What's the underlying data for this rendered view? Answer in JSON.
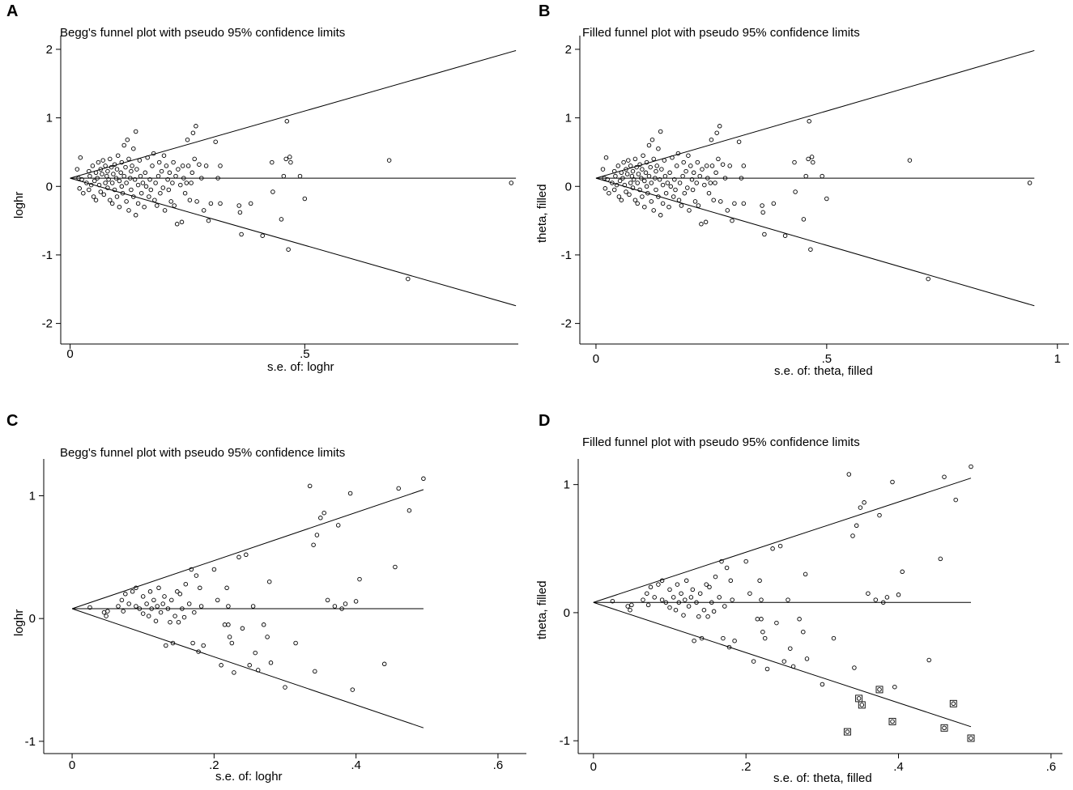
{
  "chart_data": [
    {
      "type": "scatter",
      "panel": "A",
      "title": "Begg's funnel plot with pseudo 95% confidence limits",
      "xlabel": "s.e. of: loghr",
      "ylabel": "loghr",
      "xlim": [
        -0.02,
        0.955
      ],
      "ylim": [
        -2.3,
        2.2
      ],
      "xticks": [
        0,
        0.5
      ],
      "xtick_labels": [
        "0",
        ".5"
      ],
      "yticks": [
        -2,
        -1,
        0,
        1,
        2
      ],
      "ytick_labels": [
        "-2",
        "-1",
        "0",
        "1",
        "2"
      ],
      "pooled": 0.12,
      "z": 1.96,
      "line_xmax": 0.95,
      "points": [
        [
          0.015,
          0.25
        ],
        [
          0.018,
          0.12
        ],
        [
          0.02,
          -0.03
        ],
        [
          0.022,
          0.42
        ],
        [
          0.025,
          0.1
        ],
        [
          0.028,
          -0.1
        ],
        [
          0.035,
          0.05
        ],
        [
          0.04,
          0.22
        ],
        [
          0.04,
          -0.05
        ],
        [
          0.042,
          0.15
        ],
        [
          0.045,
          0.02
        ],
        [
          0.048,
          0.3
        ],
        [
          0.05,
          -0.15
        ],
        [
          0.052,
          0.08
        ],
        [
          0.055,
          0.2
        ],
        [
          0.055,
          -0.2
        ],
        [
          0.058,
          0.12
        ],
        [
          0.06,
          0.35
        ],
        [
          0.062,
          0.02
        ],
        [
          0.065,
          -0.08
        ],
        [
          0.065,
          0.25
        ],
        [
          0.068,
          0.18
        ],
        [
          0.07,
          0.38
        ],
        [
          0.072,
          -0.12
        ],
        [
          0.075,
          0.05
        ],
        [
          0.075,
          0.3
        ],
        [
          0.078,
          0.15
        ],
        [
          0.08,
          -0.02
        ],
        [
          0.08,
          0.22
        ],
        [
          0.082,
          0.1
        ],
        [
          0.085,
          -0.2
        ],
        [
          0.085,
          0.4
        ],
        [
          0.088,
          0.28
        ],
        [
          0.09,
          0.05
        ],
        [
          0.09,
          -0.25
        ],
        [
          0.092,
          0.18
        ],
        [
          0.095,
          0.32
        ],
        [
          0.095,
          -0.05
        ],
        [
          0.098,
          0.12
        ],
        [
          0.1,
          0.25
        ],
        [
          0.1,
          -0.15
        ],
        [
          0.102,
          0.45
        ],
        [
          0.105,
          0.08
        ],
        [
          0.105,
          -0.3
        ],
        [
          0.108,
          0.2
        ],
        [
          0.11,
          0.35
        ],
        [
          0.11,
          0
        ],
        [
          0.112,
          -0.1
        ],
        [
          0.115,
          0.6
        ],
        [
          0.115,
          0.15
        ],
        [
          0.118,
          0.28
        ],
        [
          0.12,
          -0.22
        ],
        [
          0.12,
          0.05
        ],
        [
          0.122,
          0.68
        ],
        [
          0.125,
          0.4
        ],
        [
          0.125,
          -0.35
        ],
        [
          0.128,
          0.12
        ],
        [
          0.13,
          0.22
        ],
        [
          0.13,
          -0.05
        ],
        [
          0.132,
          0.3
        ],
        [
          0.135,
          0.55
        ],
        [
          0.135,
          -0.15
        ],
        [
          0.138,
          0.1
        ],
        [
          0.14,
          0.8
        ],
        [
          0.14,
          -0.42
        ],
        [
          0.142,
          0.25
        ],
        [
          0.145,
          0.02
        ],
        [
          0.145,
          -0.25
        ],
        [
          0.148,
          0.38
        ],
        [
          0.15,
          0.15
        ],
        [
          0.152,
          -0.1
        ],
        [
          0.155,
          0.05
        ],
        [
          0.158,
          -0.3
        ],
        [
          0.16,
          0.2
        ],
        [
          0.162,
          0
        ],
        [
          0.165,
          0.42
        ],
        [
          0.168,
          -0.15
        ],
        [
          0.17,
          0.1
        ],
        [
          0.172,
          -0.05
        ],
        [
          0.175,
          0.3
        ],
        [
          0.178,
          0.48
        ],
        [
          0.18,
          -0.2
        ],
        [
          0.182,
          0.05
        ],
        [
          0.185,
          -0.28
        ],
        [
          0.188,
          0.15
        ],
        [
          0.19,
          0.35
        ],
        [
          0.192,
          -0.1
        ],
        [
          0.195,
          0.22
        ],
        [
          0.198,
          -0.02
        ],
        [
          0.2,
          0.45
        ],
        [
          0.202,
          -0.35
        ],
        [
          0.205,
          0.3
        ],
        [
          0.208,
          0.1
        ],
        [
          0.21,
          -0.05
        ],
        [
          0.212,
          0.2
        ],
        [
          0.215,
          -0.22
        ],
        [
          0.218,
          0.05
        ],
        [
          0.22,
          0.35
        ],
        [
          0.222,
          -0.28
        ],
        [
          0.225,
          0.15
        ],
        [
          0.228,
          -0.55
        ],
        [
          0.23,
          0.25
        ],
        [
          0.235,
          0.02
        ],
        [
          0.238,
          -0.52
        ],
        [
          0.24,
          0.3
        ],
        [
          0.242,
          0.12
        ],
        [
          0.245,
          -0.1
        ],
        [
          0.248,
          0.05
        ],
        [
          0.25,
          0.68
        ],
        [
          0.252,
          0.3
        ],
        [
          0.255,
          -0.2
        ],
        [
          0.258,
          0.05
        ],
        [
          0.26,
          0.2
        ],
        [
          0.262,
          0.78
        ],
        [
          0.265,
          0.4
        ],
        [
          0.268,
          0.88
        ],
        [
          0.27,
          -0.22
        ],
        [
          0.275,
          0.32
        ],
        [
          0.28,
          0.12
        ],
        [
          0.285,
          -0.35
        ],
        [
          0.29,
          0.3
        ],
        [
          0.295,
          -0.5
        ],
        [
          0.3,
          -0.25
        ],
        [
          0.31,
          0.65
        ],
        [
          0.315,
          0.12
        ],
        [
          0.32,
          0.3
        ],
        [
          0.32,
          -0.25
        ],
        [
          0.36,
          -0.28
        ],
        [
          0.362,
          -0.38
        ],
        [
          0.365,
          -0.7
        ],
        [
          0.385,
          -0.25
        ],
        [
          0.41,
          -0.72
        ],
        [
          0.43,
          0.35
        ],
        [
          0.432,
          -0.08
        ],
        [
          0.45,
          -0.48
        ],
        [
          0.455,
          0.15
        ],
        [
          0.46,
          0.4
        ],
        [
          0.462,
          0.95
        ],
        [
          0.465,
          -0.92
        ],
        [
          0.468,
          0.43
        ],
        [
          0.47,
          0.35
        ],
        [
          0.49,
          0.15
        ],
        [
          0.5,
          -0.18
        ],
        [
          0.68,
          0.38
        ],
        [
          0.72,
          -1.35
        ],
        [
          0.94,
          0.05
        ]
      ]
    },
    {
      "type": "scatter",
      "panel": "B",
      "title": "Filled funnel plot with pseudo 95% confidence limits",
      "xlabel": "s.e. of: theta, filled",
      "ylabel": "theta, filled",
      "xlim": [
        -0.035,
        1.025
      ],
      "ylim": [
        -2.3,
        2.2
      ],
      "xticks": [
        0,
        0.5,
        1
      ],
      "xtick_labels": [
        "0",
        ".5",
        "1"
      ],
      "yticks": [
        -2,
        -1,
        0,
        1,
        2
      ],
      "ytick_labels": [
        "-2",
        "-1",
        "0",
        "1",
        "2"
      ],
      "pooled": 0.12,
      "z": 1.96,
      "line_xmax": 0.95,
      "points": "same as panel A"
    },
    {
      "type": "scatter",
      "panel": "C",
      "title": "Begg's funnel plot with pseudo 95% confidence limits",
      "xlabel": "s.e. of: loghr",
      "ylabel": "loghr",
      "xlim": [
        -0.04,
        0.64
      ],
      "ylim": [
        -1.1,
        1.3
      ],
      "xticks": [
        0,
        0.2,
        0.4,
        0.6
      ],
      "xtick_labels": [
        "0",
        ".2",
        ".4",
        ".6"
      ],
      "yticks": [
        -1,
        0,
        1
      ],
      "ytick_labels": [
        "-1",
        "0",
        "1"
      ],
      "pooled": 0.08,
      "z": 1.96,
      "line_xmax": 0.495,
      "points": [
        [
          0.025,
          0.09
        ],
        [
          0.045,
          0.05
        ],
        [
          0.048,
          0.02
        ],
        [
          0.05,
          0.06
        ],
        [
          0.065,
          0.1
        ],
        [
          0.07,
          0.15
        ],
        [
          0.072,
          0.06
        ],
        [
          0.075,
          0.2
        ],
        [
          0.08,
          0.12
        ],
        [
          0.085,
          0.22
        ],
        [
          0.09,
          0.25
        ],
        [
          0.09,
          0.1
        ],
        [
          0.095,
          0.08
        ],
        [
          0.1,
          0.18
        ],
        [
          0.1,
          0.04
        ],
        [
          0.105,
          0.12
        ],
        [
          0.108,
          0.02
        ],
        [
          0.11,
          0.22
        ],
        [
          0.112,
          0.08
        ],
        [
          0.115,
          0.15
        ],
        [
          0.118,
          -0.02
        ],
        [
          0.12,
          0.1
        ],
        [
          0.122,
          0.25
        ],
        [
          0.125,
          0.05
        ],
        [
          0.128,
          0.12
        ],
        [
          0.13,
          0.18
        ],
        [
          0.132,
          -0.22
        ],
        [
          0.135,
          0.08
        ],
        [
          0.138,
          -0.03
        ],
        [
          0.14,
          0.15
        ],
        [
          0.142,
          -0.2
        ],
        [
          0.145,
          0.02
        ],
        [
          0.148,
          0.22
        ],
        [
          0.15,
          -0.03
        ],
        [
          0.152,
          0.2
        ],
        [
          0.155,
          0.08
        ],
        [
          0.158,
          0.01
        ],
        [
          0.16,
          0.28
        ],
        [
          0.165,
          0.12
        ],
        [
          0.168,
          0.4
        ],
        [
          0.17,
          -0.2
        ],
        [
          0.172,
          0.05
        ],
        [
          0.175,
          0.35
        ],
        [
          0.178,
          -0.27
        ],
        [
          0.18,
          0.25
        ],
        [
          0.182,
          0.1
        ],
        [
          0.185,
          -0.22
        ],
        [
          0.2,
          0.4
        ],
        [
          0.205,
          0.15
        ],
        [
          0.21,
          -0.38
        ],
        [
          0.215,
          -0.05
        ],
        [
          0.218,
          0.25
        ],
        [
          0.22,
          0.1
        ],
        [
          0.22,
          -0.05
        ],
        [
          0.222,
          -0.15
        ],
        [
          0.225,
          -0.2
        ],
        [
          0.228,
          -0.44
        ],
        [
          0.235,
          0.5
        ],
        [
          0.24,
          -0.08
        ],
        [
          0.245,
          0.52
        ],
        [
          0.25,
          -0.38
        ],
        [
          0.255,
          0.1
        ],
        [
          0.258,
          -0.28
        ],
        [
          0.262,
          -0.42
        ],
        [
          0.27,
          -0.05
        ],
        [
          0.275,
          -0.15
        ],
        [
          0.278,
          0.3
        ],
        [
          0.28,
          -0.36
        ],
        [
          0.3,
          -0.56
        ],
        [
          0.315,
          -0.2
        ],
        [
          0.335,
          1.08
        ],
        [
          0.34,
          0.6
        ],
        [
          0.342,
          -0.43
        ],
        [
          0.345,
          0.68
        ],
        [
          0.35,
          0.82
        ],
        [
          0.355,
          0.86
        ],
        [
          0.36,
          0.15
        ],
        [
          0.37,
          0.1
        ],
        [
          0.375,
          0.76
        ],
        [
          0.38,
          0.08
        ],
        [
          0.385,
          0.12
        ],
        [
          0.392,
          1.02
        ],
        [
          0.395,
          -0.58
        ],
        [
          0.4,
          0.14
        ],
        [
          0.405,
          0.32
        ],
        [
          0.44,
          -0.37
        ],
        [
          0.455,
          0.42
        ],
        [
          0.46,
          1.06
        ],
        [
          0.475,
          0.88
        ],
        [
          0.495,
          1.14
        ]
      ]
    },
    {
      "type": "scatter",
      "panel": "D",
      "title": "Filled funnel plot with pseudo 95% confidence limits",
      "xlabel": "s.e. of: theta, filled",
      "ylabel": "theta, filled",
      "xlim": [
        -0.02,
        0.615
      ],
      "ylim": [
        -1.1,
        1.2
      ],
      "xticks": [
        0,
        0.2,
        0.4,
        0.6
      ],
      "xtick_labels": [
        "0",
        ".2",
        ".4",
        ".6"
      ],
      "yticks": [
        -1,
        0,
        1
      ],
      "ytick_labels": [
        "-1",
        "0",
        "1"
      ],
      "pooled": 0.08,
      "z": 1.96,
      "line_xmax": 0.495,
      "points": "same as panel C",
      "filled_points": [
        [
          0.333,
          -0.93
        ],
        [
          0.348,
          -0.67
        ],
        [
          0.352,
          -0.72
        ],
        [
          0.375,
          -0.6
        ],
        [
          0.392,
          -0.85
        ],
        [
          0.46,
          -0.9
        ],
        [
          0.472,
          -0.71
        ],
        [
          0.495,
          -0.98
        ]
      ]
    }
  ],
  "panels": {
    "a": {
      "letter": "A",
      "title": "Begg's funnel plot with pseudo 95% confidence limits",
      "xlabel": "s.e. of: loghr",
      "ylabel": "loghr"
    },
    "b": {
      "letter": "B",
      "title": "Filled funnel plot with pseudo 95% confidence limits",
      "xlabel": "s.e. of: theta, filled",
      "ylabel": "theta, filled"
    },
    "c": {
      "letter": "C",
      "title": "Begg's funnel plot with pseudo 95% confidence limits",
      "xlabel": "s.e. of: loghr",
      "ylabel": "loghr"
    },
    "d": {
      "letter": "D",
      "title": "Filled funnel plot with pseudo 95% confidence limits",
      "xlabel": "s.e. of: theta, filled",
      "ylabel": "theta, filled"
    }
  }
}
